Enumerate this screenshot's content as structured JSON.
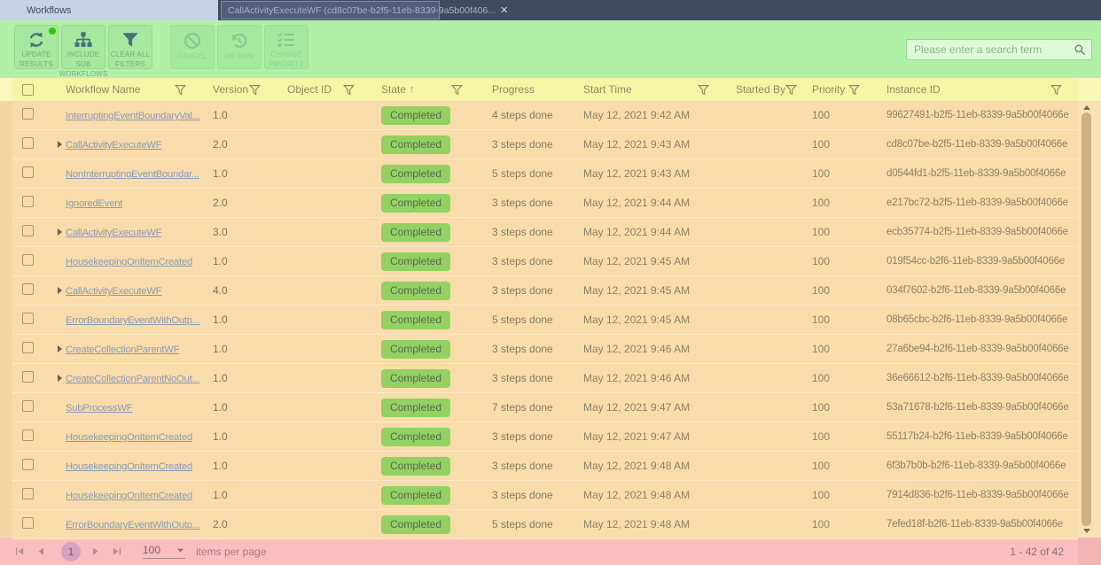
{
  "tabs": {
    "workflows": "Workflows",
    "detail": "CallActivityExecuteWF (cd8c07be-b2f5-11eb-8339-9a5b00f406...",
    "close_glyph": "✕"
  },
  "toolbar": {
    "buttons": [
      {
        "name": "update-results-button",
        "icon": "refresh-icon",
        "label_lines": [
          "UPDATE",
          "RESULTS"
        ],
        "enabled": true,
        "badge": true,
        "gap_before": false
      },
      {
        "name": "include-sub-workflows-button",
        "icon": "hierarchy-icon",
        "label_lines": [
          "INCLUDE SUB",
          "WORKFLOWS"
        ],
        "enabled": true,
        "badge": false,
        "gap_before": false
      },
      {
        "name": "clear-all-filters-button",
        "icon": "clear-filter-icon",
        "label_lines": [
          "CLEAR ALL",
          "FILTERS"
        ],
        "enabled": true,
        "badge": false,
        "gap_before": false
      },
      {
        "name": "cancel-button",
        "icon": "cancel-icon",
        "label_lines": [
          "CANCEL"
        ],
        "enabled": false,
        "badge": false,
        "gap_before": true
      },
      {
        "name": "re-run-button",
        "icon": "rerun-icon",
        "label_lines": [
          "RE RUN"
        ],
        "enabled": false,
        "badge": false,
        "gap_before": false
      },
      {
        "name": "change-priority-button",
        "icon": "priority-icon",
        "label_lines": [
          "CHANGE",
          "PRIORITY"
        ],
        "enabled": false,
        "badge": false,
        "gap_before": false
      }
    ],
    "search": {
      "placeholder": "Please enter a search term",
      "value": ""
    }
  },
  "table": {
    "sort_arrow": "↑",
    "columns": [
      {
        "label": "Workflow Name",
        "filter": true,
        "sorted": false
      },
      {
        "label": "Version",
        "filter": true,
        "sorted": false
      },
      {
        "label": "Object ID",
        "filter": true,
        "sorted": false
      },
      {
        "label": "State",
        "filter": true,
        "sorted": true
      },
      {
        "label": "Progress",
        "filter": false,
        "sorted": false
      },
      {
        "label": "Start Time",
        "filter": true,
        "sorted": false
      },
      {
        "label": "Started By",
        "filter": true,
        "sorted": false
      },
      {
        "label": "Priority",
        "filter": true,
        "sorted": false
      },
      {
        "label": "Instance ID",
        "filter": true,
        "sorted": false
      }
    ],
    "rows": [
      {
        "expandable": false,
        "workflow_name": "InterruptingEventBoundaryVal...",
        "version": "1.0",
        "object_id": "",
        "state": "Completed",
        "progress": "4 steps done",
        "start_time": "May 12, 2021 9:42 AM",
        "started_by": "",
        "priority": "100",
        "instance_id": "99627491-b2f5-11eb-8339-9a5b00f4066e"
      },
      {
        "expandable": true,
        "workflow_name": "CallActivityExecuteWF",
        "version": "2.0",
        "object_id": "",
        "state": "Completed",
        "progress": "3 steps done",
        "start_time": "May 12, 2021 9:43 AM",
        "started_by": "",
        "priority": "100",
        "instance_id": "cd8c07be-b2f5-11eb-8339-9a5b00f4066e"
      },
      {
        "expandable": false,
        "workflow_name": "NonInterruptingEventBoundar...",
        "version": "1.0",
        "object_id": "",
        "state": "Completed",
        "progress": "5 steps done",
        "start_time": "May 12, 2021 9:43 AM",
        "started_by": "",
        "priority": "100",
        "instance_id": "d0544fd1-b2f5-11eb-8339-9a5b00f4066e"
      },
      {
        "expandable": false,
        "workflow_name": "IgnoredEvent",
        "version": "2.0",
        "object_id": "",
        "state": "Completed",
        "progress": "3 steps done",
        "start_time": "May 12, 2021 9:44 AM",
        "started_by": "",
        "priority": "100",
        "instance_id": "e217bc72-b2f5-11eb-8339-9a5b00f4066e"
      },
      {
        "expandable": true,
        "workflow_name": "CallActivityExecuteWF",
        "version": "3.0",
        "object_id": "",
        "state": "Completed",
        "progress": "3 steps done",
        "start_time": "May 12, 2021 9:44 AM",
        "started_by": "",
        "priority": "100",
        "instance_id": "ecb35774-b2f5-11eb-8339-9a5b00f4066e"
      },
      {
        "expandable": false,
        "workflow_name": "HousekeepingOnItemCreated",
        "version": "1.0",
        "object_id": "",
        "state": "Completed",
        "progress": "3 steps done",
        "start_time": "May 12, 2021 9:45 AM",
        "started_by": "",
        "priority": "100",
        "instance_id": "019f54cc-b2f6-11eb-8339-9a5b00f4066e"
      },
      {
        "expandable": true,
        "workflow_name": "CallActivityExecuteWF",
        "version": "4.0",
        "object_id": "",
        "state": "Completed",
        "progress": "3 steps done",
        "start_time": "May 12, 2021 9:45 AM",
        "started_by": "",
        "priority": "100",
        "instance_id": "034f7602-b2f6-11eb-8339-9a5b00f4066e"
      },
      {
        "expandable": false,
        "workflow_name": "ErrorBoundaryEventWithOutp...",
        "version": "1.0",
        "object_id": "",
        "state": "Completed",
        "progress": "5 steps done",
        "start_time": "May 12, 2021 9:45 AM",
        "started_by": "",
        "priority": "100",
        "instance_id": "08b65cbc-b2f6-11eb-8339-9a5b00f4066e"
      },
      {
        "expandable": true,
        "workflow_name": "CreateCollectionParentWF",
        "version": "1.0",
        "object_id": "",
        "state": "Completed",
        "progress": "3 steps done",
        "start_time": "May 12, 2021 9:46 AM",
        "started_by": "",
        "priority": "100",
        "instance_id": "27a6be94-b2f6-11eb-8339-9a5b00f4066e"
      },
      {
        "expandable": true,
        "workflow_name": "CreateCollectionParentNoOut...",
        "version": "1.0",
        "object_id": "",
        "state": "Completed",
        "progress": "3 steps done",
        "start_time": "May 12, 2021 9:46 AM",
        "started_by": "",
        "priority": "100",
        "instance_id": "36e66612-b2f6-11eb-8339-9a5b00f4066e"
      },
      {
        "expandable": false,
        "workflow_name": "SubProcessWF",
        "version": "1.0",
        "object_id": "",
        "state": "Completed",
        "progress": "7 steps done",
        "start_time": "May 12, 2021 9:47 AM",
        "started_by": "",
        "priority": "100",
        "instance_id": "53a71678-b2f6-11eb-8339-9a5b00f4066e"
      },
      {
        "expandable": false,
        "workflow_name": "HousekeepingOnItemCreated",
        "version": "1.0",
        "object_id": "",
        "state": "Completed",
        "progress": "3 steps done",
        "start_time": "May 12, 2021 9:47 AM",
        "started_by": "",
        "priority": "100",
        "instance_id": "55117b24-b2f6-11eb-8339-9a5b00f4066e"
      },
      {
        "expandable": false,
        "workflow_name": "HousekeepingOnItemCreated",
        "version": "1.0",
        "object_id": "",
        "state": "Completed",
        "progress": "3 steps done",
        "start_time": "May 12, 2021 9:48 AM",
        "started_by": "",
        "priority": "100",
        "instance_id": "6f3b7b0b-b2f6-11eb-8339-9a5b00f4066e"
      },
      {
        "expandable": false,
        "workflow_name": "HousekeepingOnItemCreated",
        "version": "1.0",
        "object_id": "",
        "state": "Completed",
        "progress": "3 steps done",
        "start_time": "May 12, 2021 9:48 AM",
        "started_by": "",
        "priority": "100",
        "instance_id": "7914d836-b2f6-11eb-8339-9a5b00f4066e"
      },
      {
        "expandable": false,
        "workflow_name": "ErrorBoundaryEventWithOutp...",
        "version": "2.0",
        "object_id": "",
        "state": "Completed",
        "progress": "5 steps done",
        "start_time": "May 12, 2021 9:48 AM",
        "started_by": "",
        "priority": "100",
        "instance_id": "7efed18f-b2f6-11eb-8339-9a5b00f4066e"
      }
    ]
  },
  "footer": {
    "page": "1",
    "page_size": "100",
    "items_per_page_label": "items per page",
    "range_label": "1 - 42 of 42"
  },
  "colors": {
    "tabbar_bg": "#404b60",
    "active_tab_bg": "#c7d2e4",
    "toolbar_tint": "#b0f1a7",
    "header_tint": "#f7f4a6",
    "rows_tint": "#f9dcab",
    "footer_tint": "#f9bebe",
    "state_completed_bg": "#93d162",
    "notification_dot": "#2fc50e"
  }
}
